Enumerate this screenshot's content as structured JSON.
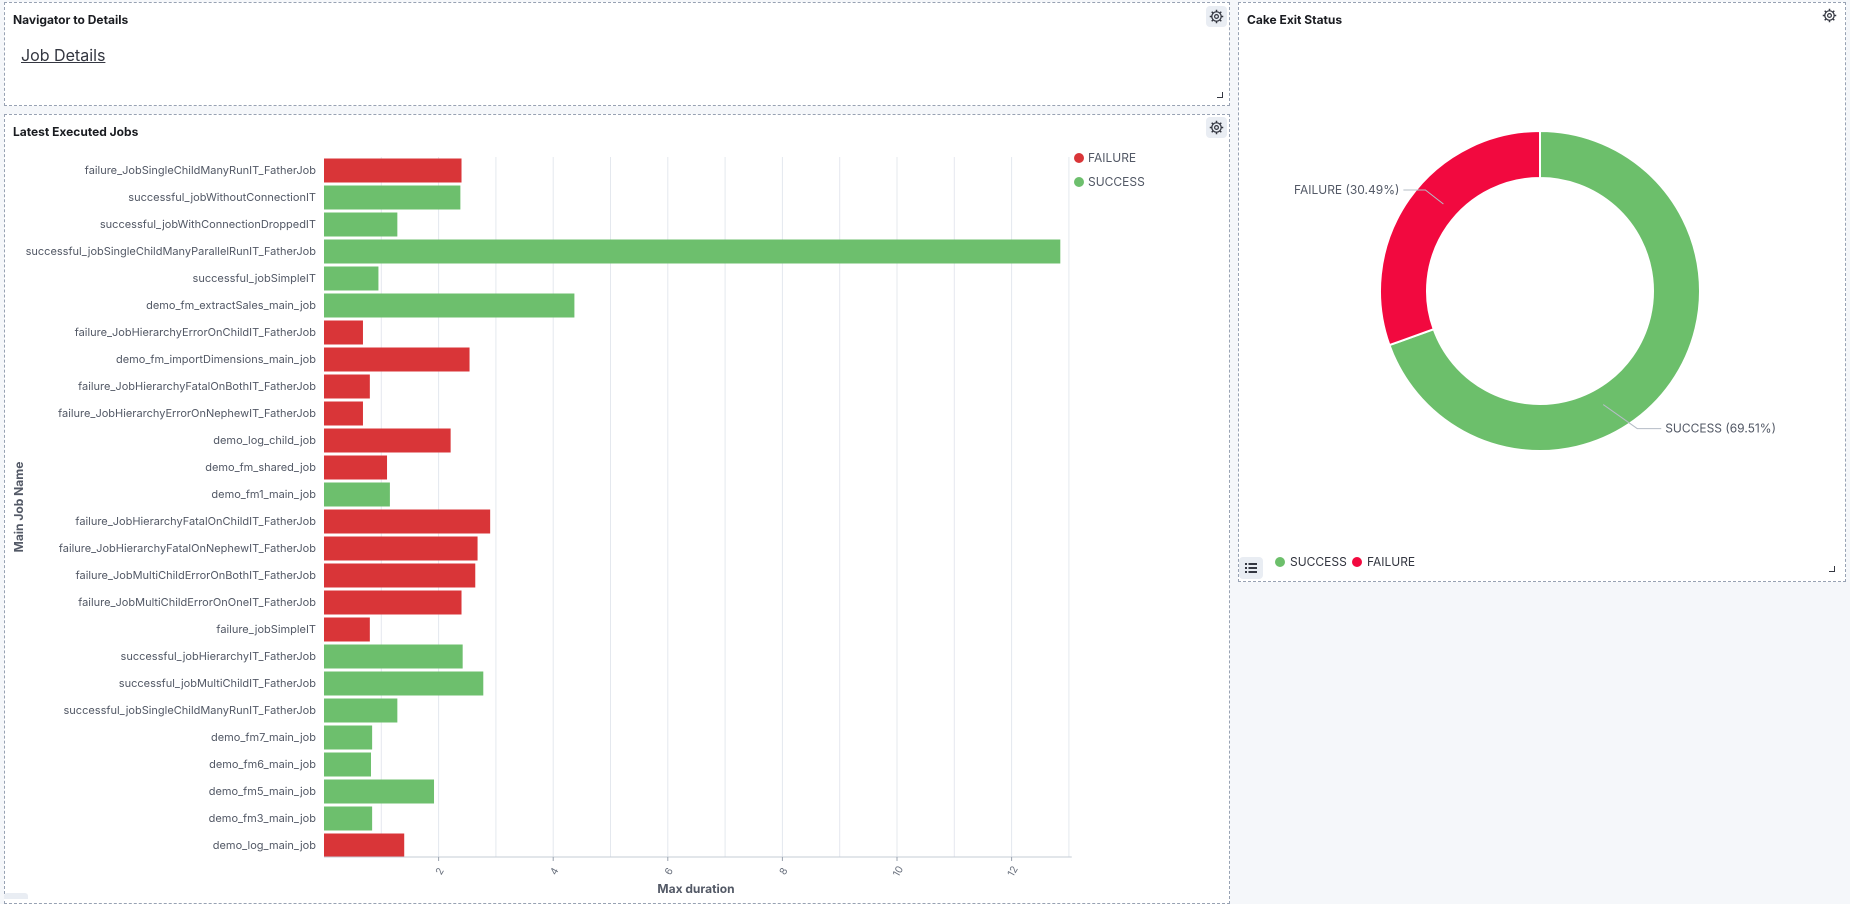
{
  "panels": {
    "navigator": {
      "title": "Navigator to Details",
      "link": "Job Details",
      "options_icon": "gear-icon"
    },
    "latest": {
      "title": "Latest Executed Jobs",
      "options_icon": "gear-icon"
    },
    "cake": {
      "title": "Cake Exit Status",
      "options_icon": "gear-icon",
      "legend_toggle_icon": "list-icon"
    }
  },
  "colors": {
    "failure_bar": "#d93538",
    "success_bar": "#6dbf6d",
    "failure_pie": "#f2093f",
    "success_pie": "#6cbf6b"
  },
  "chart_data": [
    {
      "type": "bar",
      "orientation": "horizontal",
      "xlabel": "Max duration",
      "ylabel": "Main Job Name",
      "xlim": [
        0,
        13
      ],
      "x_ticks": [
        "2",
        "4",
        "6",
        "8",
        "10",
        "12"
      ],
      "grid": true,
      "legend": {
        "placement": "top-right",
        "entries": [
          "FAILURE",
          "SUCCESS"
        ]
      },
      "categories": [
        "failure_JobSingleChildManyRunIT_FatherJob",
        "successful_jobWithoutConnectionIT",
        "successful_jobWithConnectionDroppedIT",
        "successful_jobSingleChildManyParallelRunIT_FatherJob",
        "successful_jobSimpleIT",
        "demo_fm_extractSales_main_job",
        "failure_JobHierarchyErrorOnChildIT_FatherJob",
        "demo_fm_importDimensions_main_job",
        "failure_JobHierarchyFatalOnBothIT_FatherJob",
        "failure_JobHierarchyErrorOnNephewIT_FatherJob",
        "demo_log_child_job",
        "demo_fm_shared_job",
        "demo_fm1_main_job",
        "failure_JobHierarchyFatalOnChildIT_FatherJob",
        "failure_JobHierarchyFatalOnNephewIT_FatherJob",
        "failure_JobMultiChildErrorOnBothIT_FatherJob",
        "failure_JobMultiChildErrorOnOneIT_FatherJob",
        "failure_jobSimpleIT",
        "successful_jobHierarchyIT_FatherJob",
        "successful_jobMultiChildIT_FatherJob",
        "successful_jobSingleChildManyRunIT_FatherJob",
        "demo_fm7_main_job",
        "demo_fm6_main_job",
        "demo_fm5_main_job",
        "demo_fm3_main_job",
        "demo_log_main_job"
      ],
      "values": [
        2.4,
        2.38,
        1.28,
        12.85,
        0.95,
        4.37,
        0.68,
        2.54,
        0.8,
        0.68,
        2.21,
        1.1,
        1.15,
        2.9,
        2.68,
        2.64,
        2.4,
        0.8,
        2.42,
        2.78,
        1.28,
        0.84,
        0.82,
        1.92,
        0.84,
        1.4
      ],
      "status": [
        "FAILURE",
        "SUCCESS",
        "SUCCESS",
        "SUCCESS",
        "SUCCESS",
        "SUCCESS",
        "FAILURE",
        "FAILURE",
        "FAILURE",
        "FAILURE",
        "FAILURE",
        "FAILURE",
        "SUCCESS",
        "FAILURE",
        "FAILURE",
        "FAILURE",
        "FAILURE",
        "FAILURE",
        "SUCCESS",
        "SUCCESS",
        "SUCCESS",
        "SUCCESS",
        "SUCCESS",
        "SUCCESS",
        "SUCCESS",
        "FAILURE"
      ]
    },
    {
      "type": "pie",
      "donut": true,
      "slices": [
        {
          "label": "SUCCESS",
          "value": 69.51,
          "display": "SUCCESS (69.51%)"
        },
        {
          "label": "FAILURE",
          "value": 30.49,
          "display": "FAILURE (30.49%)"
        }
      ],
      "legend": {
        "placement": "bottom-left",
        "entries": [
          "SUCCESS",
          "FAILURE"
        ]
      }
    }
  ]
}
